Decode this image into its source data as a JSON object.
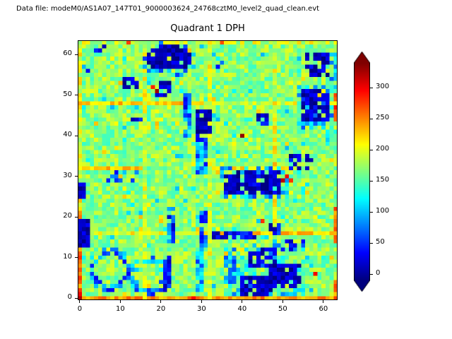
{
  "figure": {
    "annotation": "Data file: modeM0/AS1A07_147T01_9000003624_24768cztM0_level2_quad_clean.evt",
    "title": "Quadrant 1 DPH"
  },
  "chart_data": {
    "type": "heatmap",
    "title": "Quadrant 1 DPH",
    "xlabel": "",
    "ylabel": "",
    "xticks": [
      0,
      10,
      20,
      30,
      40,
      50,
      60
    ],
    "yticks": [
      0,
      10,
      20,
      30,
      40,
      50,
      60
    ],
    "xlim": [
      -0.5,
      63.5
    ],
    "ylim": [
      -0.5,
      63.5
    ],
    "colormap": "jet",
    "grid": false,
    "colorbar": {
      "ticks": [
        0,
        50,
        100,
        150,
        200,
        250,
        300
      ],
      "extend": "both",
      "vmin": -10,
      "vmax": 340
    },
    "description": "64x64 detector plane histogram (DPH). Mottled green background ~140-200 counts, dark navy dead-pixel regions (~0), cyan-blue fringes (~60-110), yellow module-boundary rows/columns (~200-230), orange detector edges (~245-265), scattered red hot pixels (~280-335).",
    "heatmap": {
      "size": 64,
      "vmin": -10,
      "vmax": 340,
      "background": {
        "mean": 170,
        "noise": 30
      },
      "lines": [
        {
          "orient": "h",
          "pos": 0,
          "a": 0,
          "b": 63,
          "value": 245,
          "jitter": 25
        },
        {
          "orient": "v",
          "pos": 0,
          "a": 1,
          "b": 21,
          "value": 255,
          "jitter": 25
        },
        {
          "orient": "v",
          "pos": 0,
          "a": 22,
          "b": 63,
          "value": 200,
          "jitter": 35
        },
        {
          "orient": "v",
          "pos": 63,
          "a": 44,
          "b": 50,
          "value": 265,
          "jitter": 20
        },
        {
          "orient": "v",
          "pos": 63,
          "a": 14,
          "b": 22,
          "value": 255,
          "jitter": 25
        },
        {
          "orient": "v",
          "pos": 63,
          "a": 0,
          "b": 4,
          "value": 250,
          "jitter": 25
        },
        {
          "orient": "h",
          "pos": 63,
          "a": 0,
          "b": 63,
          "value": 190,
          "jitter": 35
        },
        {
          "orient": "h",
          "pos": 48,
          "a": 0,
          "b": 30,
          "value": 225,
          "jitter": 25
        },
        {
          "orient": "h",
          "pos": 48,
          "a": 31,
          "b": 63,
          "value": 195,
          "jitter": 28
        },
        {
          "orient": "h",
          "pos": 32,
          "a": 0,
          "b": 15,
          "value": 225,
          "jitter": 25
        },
        {
          "orient": "h",
          "pos": 32,
          "a": 32,
          "b": 52,
          "value": 220,
          "jitter": 25
        },
        {
          "orient": "h",
          "pos": 16,
          "a": 33,
          "b": 63,
          "value": 225,
          "jitter": 25
        },
        {
          "orient": "h",
          "pos": 16,
          "a": 0,
          "b": 32,
          "value": 200,
          "jitter": 28
        },
        {
          "orient": "v",
          "pos": 16,
          "a": 0,
          "b": 63,
          "value": 195,
          "jitter": 32
        },
        {
          "orient": "v",
          "pos": 32,
          "a": 0,
          "b": 63,
          "value": 195,
          "jitter": 32
        },
        {
          "orient": "v",
          "pos": 48,
          "a": 16,
          "b": 48,
          "value": 210,
          "jitter": 30
        }
      ],
      "blobs": [
        {
          "shape": "ellipse",
          "cx": 22,
          "cy": 59,
          "rx": 7,
          "ry": 4.4,
          "value": 85,
          "jitter": 45,
          "density": 0.45
        },
        {
          "shape": "ellipse",
          "cx": 22,
          "cy": 59.2,
          "rx": 5.6,
          "ry": 3.2,
          "value": 8,
          "jitter": 25,
          "density": 0.88
        },
        {
          "shape": "rect",
          "x": 11,
          "y": 52,
          "w": 4,
          "h": 3,
          "value": 15,
          "jitter": 30,
          "density": 0.65
        },
        {
          "shape": "rect",
          "x": 19,
          "y": 50,
          "w": 4,
          "h": 4,
          "value": 10,
          "jitter": 28,
          "density": 0.8
        },
        {
          "shape": "rect",
          "x": 4,
          "y": 60,
          "w": 3,
          "h": 3,
          "value": 25,
          "jitter": 30,
          "density": 0.45
        },
        {
          "shape": "rect",
          "x": 1,
          "y": 56,
          "w": 2,
          "h": 2,
          "value": 30,
          "jitter": 30,
          "density": 0.5
        },
        {
          "shape": "rect",
          "x": 56,
          "y": 55,
          "w": 6,
          "h": 6,
          "value": 14,
          "jitter": 30,
          "density": 0.7
        },
        {
          "shape": "rect",
          "x": 62,
          "y": 52,
          "w": 2,
          "h": 9,
          "value": 95,
          "jitter": 45,
          "density": 0.55
        },
        {
          "shape": "rect",
          "x": 26,
          "y": 40,
          "w": 2,
          "h": 11,
          "value": 70,
          "jitter": 50,
          "density": 0.85
        },
        {
          "shape": "rect",
          "x": 29,
          "y": 41,
          "w": 4,
          "h": 6,
          "value": 10,
          "jitter": 25,
          "density": 0.85
        },
        {
          "shape": "rect",
          "x": 54,
          "y": 42,
          "w": 9,
          "h": 11,
          "value": 95,
          "jitter": 45,
          "density": 0.4
        },
        {
          "shape": "rect",
          "x": 55,
          "y": 44,
          "w": 7,
          "h": 8,
          "value": 12,
          "jitter": 28,
          "density": 0.78
        },
        {
          "shape": "rect",
          "x": 44,
          "y": 43,
          "w": 3,
          "h": 3,
          "value": 22,
          "jitter": 30,
          "density": 0.65
        },
        {
          "shape": "rect",
          "x": 29,
          "y": 31,
          "w": 3,
          "h": 10,
          "value": 75,
          "jitter": 50,
          "density": 0.8
        },
        {
          "shape": "rect",
          "x": 35,
          "y": 25,
          "w": 17,
          "h": 8,
          "value": 95,
          "jitter": 45,
          "density": 0.38
        },
        {
          "shape": "rect",
          "x": 36,
          "y": 26,
          "w": 14,
          "h": 6,
          "value": 12,
          "jitter": 28,
          "density": 0.8
        },
        {
          "shape": "rect",
          "x": 52,
          "y": 32,
          "w": 6,
          "h": 4,
          "value": 22,
          "jitter": 30,
          "density": 0.6
        },
        {
          "shape": "rect",
          "x": 0,
          "y": 25,
          "w": 2,
          "h": 4,
          "value": 14,
          "jitter": 25,
          "density": 0.9
        },
        {
          "shape": "rect",
          "x": 7,
          "y": 29,
          "w": 8,
          "h": 3,
          "value": 45,
          "jitter": 40,
          "density": 0.3
        },
        {
          "shape": "rect",
          "x": 13,
          "y": 44,
          "w": 3,
          "h": 2,
          "value": 45,
          "jitter": 40,
          "density": 0.45
        },
        {
          "shape": "rect",
          "x": 22,
          "y": 14,
          "w": 2,
          "h": 9,
          "value": 55,
          "jitter": 45,
          "density": 0.8
        },
        {
          "shape": "rect",
          "x": 30,
          "y": 12,
          "w": 2,
          "h": 10,
          "value": 65,
          "jitter": 48,
          "density": 0.75
        },
        {
          "shape": "rect",
          "x": 29,
          "y": 2,
          "w": 2,
          "h": 10,
          "value": 95,
          "jitter": 48,
          "density": 0.7
        },
        {
          "shape": "rect",
          "x": 33,
          "y": 15,
          "w": 11,
          "h": 2,
          "value": 25,
          "jitter": 30,
          "density": 0.85
        },
        {
          "shape": "rect",
          "x": 0,
          "y": 13,
          "w": 3,
          "h": 7,
          "value": 10,
          "jitter": 25,
          "density": 0.88
        },
        {
          "shape": "rect",
          "x": 46,
          "y": 16,
          "w": 4,
          "h": 3,
          "value": 32,
          "jitter": 35,
          "density": 0.55
        },
        {
          "shape": "ring",
          "cx": 7.5,
          "cy": 7,
          "r": 5.4,
          "th": 1.7,
          "value": 70,
          "jitter": 45,
          "density": 0.85
        },
        {
          "shape": "ring",
          "cx": 17,
          "cy": 5.5,
          "r": 4.9,
          "th": 1.6,
          "value": 80,
          "jitter": 45,
          "density": 0.8
        },
        {
          "shape": "rect",
          "x": 21,
          "y": 2,
          "w": 2,
          "h": 9,
          "value": 30,
          "jitter": 35,
          "density": 0.75
        },
        {
          "shape": "rect",
          "x": 36,
          "y": 1,
          "w": 20,
          "h": 13,
          "value": 115,
          "jitter": 50,
          "density": 0.3
        },
        {
          "shape": "rect",
          "x": 40,
          "y": 1,
          "w": 8,
          "h": 5,
          "value": 10,
          "jitter": 25,
          "density": 0.82
        },
        {
          "shape": "rect",
          "x": 47,
          "y": 3,
          "w": 8,
          "h": 6,
          "value": 10,
          "jitter": 25,
          "density": 0.78
        },
        {
          "shape": "rect",
          "x": 42,
          "y": 8,
          "w": 7,
          "h": 5,
          "value": 15,
          "jitter": 28,
          "density": 0.68
        },
        {
          "shape": "rect",
          "x": 36,
          "y": 4,
          "w": 3,
          "h": 9,
          "value": 85,
          "jitter": 45,
          "density": 0.55
        },
        {
          "shape": "rect",
          "x": 50,
          "y": 12,
          "w": 6,
          "h": 3,
          "value": 45,
          "jitter": 40,
          "density": 0.45
        },
        {
          "shape": "rect",
          "x": 33,
          "y": 56,
          "w": 3,
          "h": 3,
          "value": 70,
          "jitter": 40,
          "density": 0.4
        }
      ],
      "points": [
        {
          "x": 0,
          "y": 0,
          "value": 325
        },
        {
          "x": 0,
          "y": 1,
          "value": 300
        },
        {
          "x": 19,
          "y": 51,
          "value": 330
        },
        {
          "x": 18,
          "y": 52,
          "value": 285
        },
        {
          "x": 40,
          "y": 40,
          "value": 335
        },
        {
          "x": 50,
          "y": 29,
          "value": 320
        },
        {
          "x": 51,
          "y": 30,
          "value": 300
        },
        {
          "x": 52,
          "y": 29,
          "value": 280
        },
        {
          "x": 58,
          "y": 6,
          "value": 300
        },
        {
          "x": 63,
          "y": 47,
          "value": 290
        },
        {
          "x": 45,
          "y": 19,
          "value": 280
        },
        {
          "x": 28,
          "y": 0,
          "value": 295
        },
        {
          "x": 12,
          "y": 63,
          "value": 275
        },
        {
          "x": 35,
          "y": 63,
          "value": 270
        }
      ]
    }
  }
}
